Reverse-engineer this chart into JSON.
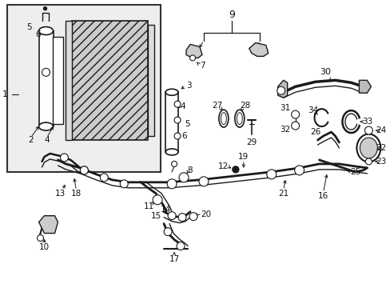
{
  "bg_color": "#ffffff",
  "box_bg": "#e8e8e8",
  "line_color": "#1a1a1a",
  "label_color": "#111111",
  "font_size": 7.5,
  "fig_width": 4.89,
  "fig_height": 3.6,
  "dpi": 100
}
